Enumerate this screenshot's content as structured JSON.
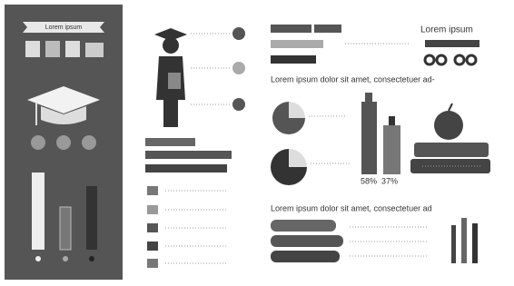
{
  "panel": {
    "banner": "Lorem ipsum"
  },
  "header": {
    "title": "Lorem ipsum"
  },
  "section1": {
    "text": "Lorem ipsum dolor sit amet, consectetuer ad-"
  },
  "stats": {
    "left": "58%",
    "right": "37%"
  },
  "section2": {
    "text": "Lorem ipsum dolor sit amet, consectetuer ad"
  }
}
